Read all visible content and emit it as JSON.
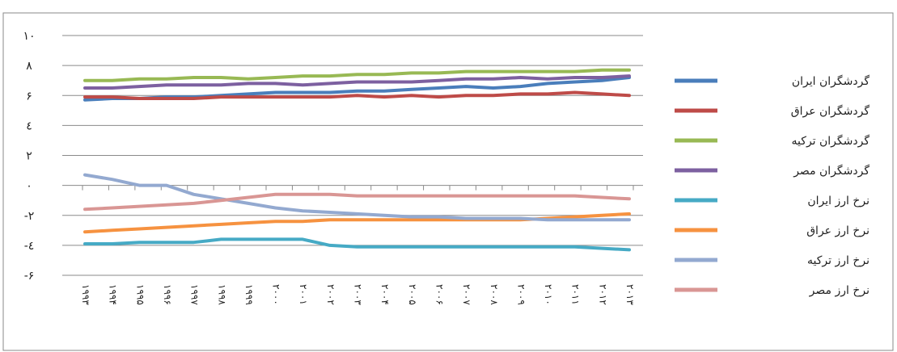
{
  "chart_data": {
    "type": "line",
    "title": "",
    "xlabel": "",
    "ylabel": "",
    "ylim": [
      -6,
      10
    ],
    "y_ticks": [
      10,
      8,
      6,
      4,
      2,
      0,
      -2,
      -4,
      -6
    ],
    "y_tick_labels": [
      "۱۰",
      "۸",
      "۶",
      "٤",
      "۲",
      "۰",
      "-۲",
      "-٤",
      "-۶"
    ],
    "grid": true,
    "legend_position": "right",
    "categories": [
      "۱۹۹۳",
      "۱۹۹۴",
      "۱۹۹۵",
      "۱۹۹۶",
      "۱۹۹۷",
      "۱۹۹۸",
      "۱۹۹۹",
      "۲۰۰۰",
      "۲۰۰۱",
      "۲۰۰۲",
      "۲۰۰۳",
      "۲۰۰۴",
      "۲۰۰۵",
      "۲۰۰۶",
      "۲۰۰۷",
      "۲۰۰۸",
      "۲۰۰۹",
      "۲۰۱۰",
      "۲۰۱۱",
      "۲۰۱۲",
      "۲۰۱۳"
    ],
    "series": [
      {
        "name": "گردشگران ایران",
        "color": "#4a7ebb",
        "values": [
          5.7,
          5.8,
          5.8,
          5.9,
          5.9,
          6.0,
          6.1,
          6.2,
          6.2,
          6.2,
          6.3,
          6.3,
          6.4,
          6.5,
          6.6,
          6.5,
          6.6,
          6.8,
          6.9,
          7.0,
          7.2
        ]
      },
      {
        "name": "گردشگران عراق",
        "color": "#be4b48",
        "values": [
          5.9,
          5.9,
          5.8,
          5.8,
          5.8,
          5.9,
          5.9,
          5.9,
          5.9,
          5.9,
          6.0,
          5.9,
          6.0,
          5.9,
          6.0,
          6.0,
          6.1,
          6.1,
          6.2,
          6.1,
          6.0
        ]
      },
      {
        "name": "گردشگران ترکیه",
        "color": "#98b954",
        "values": [
          7.0,
          7.0,
          7.1,
          7.1,
          7.2,
          7.2,
          7.1,
          7.2,
          7.3,
          7.3,
          7.4,
          7.4,
          7.5,
          7.5,
          7.6,
          7.6,
          7.6,
          7.6,
          7.6,
          7.7,
          7.7
        ]
      },
      {
        "name": "گردشگران مصر",
        "color": "#7d60a0",
        "values": [
          6.5,
          6.5,
          6.6,
          6.7,
          6.7,
          6.7,
          6.8,
          6.8,
          6.7,
          6.8,
          6.9,
          6.9,
          6.9,
          7.0,
          7.1,
          7.1,
          7.2,
          7.1,
          7.2,
          7.2,
          7.3
        ]
      },
      {
        "name": "نرخ ارز ایران",
        "color": "#46aac5",
        "values": [
          -3.9,
          -3.9,
          -3.8,
          -3.8,
          -3.8,
          -3.6,
          -3.6,
          -3.6,
          -3.6,
          -4.0,
          -4.1,
          -4.1,
          -4.1,
          -4.1,
          -4.1,
          -4.1,
          -4.1,
          -4.1,
          -4.1,
          -4.2,
          -4.3
        ]
      },
      {
        "name": "نرخ ارز عراق",
        "color": "#f69240",
        "values": [
          -3.1,
          -3.0,
          -2.9,
          -2.8,
          -2.7,
          -2.6,
          -2.5,
          -2.4,
          -2.4,
          -2.3,
          -2.3,
          -2.3,
          -2.3,
          -2.3,
          -2.3,
          -2.3,
          -2.3,
          -2.2,
          -2.1,
          -2.0,
          -1.9
        ]
      },
      {
        "name": "نرخ ارز ترکیه",
        "color": "#93a9d0",
        "values": [
          0.7,
          0.4,
          0.0,
          0.0,
          -0.6,
          -0.9,
          -1.2,
          -1.5,
          -1.7,
          -1.8,
          -1.9,
          -2.0,
          -2.1,
          -2.1,
          -2.2,
          -2.2,
          -2.2,
          -2.3,
          -2.3,
          -2.3,
          -2.3
        ]
      },
      {
        "name": "نرخ ارز مصر",
        "color": "#d99694",
        "values": [
          -1.6,
          -1.5,
          -1.4,
          -1.3,
          -1.2,
          -1.0,
          -0.8,
          -0.6,
          -0.6,
          -0.6,
          -0.7,
          -0.7,
          -0.7,
          -0.7,
          -0.7,
          -0.7,
          -0.7,
          -0.7,
          -0.7,
          -0.8,
          -0.9
        ]
      }
    ]
  }
}
